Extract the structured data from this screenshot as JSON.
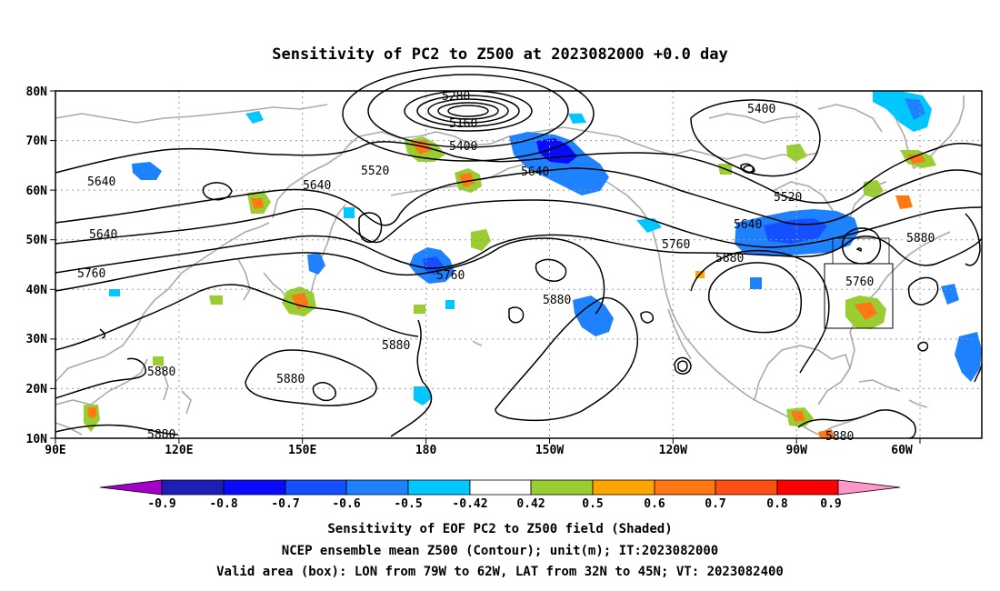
{
  "title": "Sensitivity of PC2 to Z500 at 2023082000 +0.0 day",
  "map": {
    "lat_labels": [
      "80N",
      "70N",
      "60N",
      "50N",
      "40N",
      "30N",
      "20N",
      "10N"
    ],
    "lon_labels": [
      "90E",
      "120E",
      "150E",
      "180",
      "150W",
      "120W",
      "90W",
      "60W"
    ],
    "contour_labels": [
      {
        "text": "5280"
      },
      {
        "text": "5160"
      },
      {
        "text": "5400"
      },
      {
        "text": "5520"
      },
      {
        "text": "5640"
      },
      {
        "text": "5400"
      },
      {
        "text": "5520"
      },
      {
        "text": "5640"
      },
      {
        "text": "5640"
      },
      {
        "text": "5640"
      },
      {
        "text": "5640"
      },
      {
        "text": "5760"
      },
      {
        "text": "5760"
      },
      {
        "text": "5760"
      },
      {
        "text": "5880"
      },
      {
        "text": "5880"
      },
      {
        "text": "5760"
      },
      {
        "text": "5880"
      },
      {
        "text": "5880"
      },
      {
        "text": "5880"
      },
      {
        "text": "5880"
      },
      {
        "text": "5880"
      },
      {
        "text": "5880"
      }
    ],
    "valid_box": {
      "lon_from": "79W",
      "lon_to": "62W",
      "lat_from": "32N",
      "lat_to": "45N"
    }
  },
  "colorbar": {
    "colors": [
      "#a000c8",
      "#1e1eb4",
      "#0a0aff",
      "#1450ff",
      "#1e82ff",
      "#00c8ff",
      "#ffffff",
      "#9acd32",
      "#ffa500",
      "#ff7814",
      "#ff5014",
      "#ff0000",
      "#ff96c8"
    ],
    "labels": [
      "-0.9",
      "-0.8",
      "-0.7",
      "-0.6",
      "-0.5",
      "-0.42",
      "0.42",
      "0.5",
      "0.6",
      "0.7",
      "0.8",
      "0.9"
    ]
  },
  "captions": {
    "line1": "Sensitivity of EOF PC2 to Z500 field (Shaded)",
    "line2": "NCEP ensemble mean Z500 (Contour); unit(m); IT:2023082000",
    "line3": "Valid area (box): LON from 79W to 62W, LAT from 32N to 45N; VT: 2023082400"
  }
}
